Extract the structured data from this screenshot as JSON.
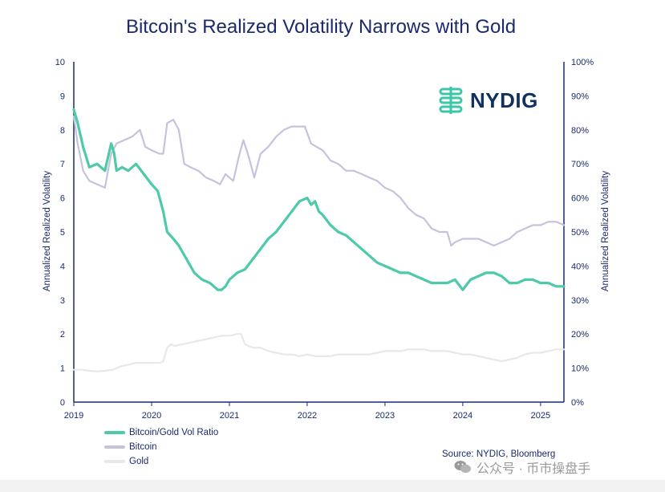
{
  "chart_data": {
    "type": "line",
    "title": "Bitcoin's Realized Volatility Narrows with Gold",
    "xlabel": "",
    "ylabel_left": "Annualized Realized Volatility",
    "ylabel_right": "Annualized Realized Volatility",
    "xlim": [
      2019,
      2025.3
    ],
    "ylim_left": [
      0,
      10
    ],
    "ylim_right": [
      0,
      100
    ],
    "x_ticks": [
      "2019",
      "2020",
      "2021",
      "2022",
      "2023",
      "2024",
      "2025"
    ],
    "y_ticks_left": [
      "0",
      "1",
      "2",
      "3",
      "4",
      "5",
      "6",
      "7",
      "8",
      "9",
      "10"
    ],
    "y_ticks_right": [
      "0%",
      "10%",
      "20%",
      "30%",
      "40%",
      "50%",
      "60%",
      "70%",
      "80%",
      "90%",
      "100%"
    ],
    "grid": false,
    "legend_position": "bottom-left",
    "series": [
      {
        "name": "Bitcoin/Gold Vol Ratio",
        "axis": "left",
        "color": "#4ec9aa",
        "x": [
          2019.0,
          2019.05,
          2019.12,
          2019.2,
          2019.3,
          2019.4,
          2019.48,
          2019.52,
          2019.55,
          2019.62,
          2019.7,
          2019.8,
          2019.9,
          2020.0,
          2020.08,
          2020.15,
          2020.2,
          2020.28,
          2020.35,
          2020.45,
          2020.55,
          2020.65,
          2020.75,
          2020.85,
          2020.9,
          2020.95,
          2021.0,
          2021.1,
          2021.2,
          2021.3,
          2021.4,
          2021.5,
          2021.6,
          2021.7,
          2021.8,
          2021.9,
          2022.0,
          2022.05,
          2022.1,
          2022.15,
          2022.2,
          2022.3,
          2022.4,
          2022.5,
          2022.6,
          2022.7,
          2022.8,
          2022.9,
          2023.0,
          2023.1,
          2023.2,
          2023.3,
          2023.4,
          2023.5,
          2023.6,
          2023.7,
          2023.8,
          2023.9,
          2024.0,
          2024.1,
          2024.2,
          2024.3,
          2024.4,
          2024.5,
          2024.6,
          2024.7,
          2024.8,
          2024.9,
          2025.0,
          2025.1,
          2025.2,
          2025.3
        ],
        "values": [
          8.6,
          8.2,
          7.5,
          6.9,
          7.0,
          6.8,
          7.6,
          7.3,
          6.8,
          6.9,
          6.8,
          7.0,
          6.7,
          6.4,
          6.2,
          5.6,
          5.0,
          4.8,
          4.6,
          4.2,
          3.8,
          3.6,
          3.5,
          3.3,
          3.3,
          3.4,
          3.6,
          3.8,
          3.9,
          4.2,
          4.5,
          4.8,
          5.0,
          5.3,
          5.6,
          5.9,
          6.0,
          5.8,
          5.9,
          5.6,
          5.5,
          5.2,
          5.0,
          4.9,
          4.7,
          4.5,
          4.3,
          4.1,
          4.0,
          3.9,
          3.8,
          3.8,
          3.7,
          3.6,
          3.5,
          3.5,
          3.5,
          3.6,
          3.3,
          3.6,
          3.7,
          3.8,
          3.8,
          3.7,
          3.5,
          3.5,
          3.6,
          3.6,
          3.5,
          3.5,
          3.4,
          3.4
        ]
      },
      {
        "name": "Bitcoin",
        "axis": "right",
        "color": "#c3c4dc",
        "x": [
          2019.0,
          2019.05,
          2019.12,
          2019.2,
          2019.3,
          2019.4,
          2019.48,
          2019.55,
          2019.65,
          2019.75,
          2019.85,
          2019.92,
          2020.0,
          2020.1,
          2020.15,
          2020.2,
          2020.28,
          2020.35,
          2020.42,
          2020.5,
          2020.6,
          2020.7,
          2020.8,
          2020.88,
          2020.95,
          2021.05,
          2021.12,
          2021.18,
          2021.25,
          2021.32,
          2021.4,
          2021.5,
          2021.6,
          2021.7,
          2021.8,
          2021.9,
          2021.97,
          2022.05,
          2022.12,
          2022.2,
          2022.3,
          2022.4,
          2022.5,
          2022.6,
          2022.7,
          2022.8,
          2022.9,
          2023.0,
          2023.1,
          2023.2,
          2023.3,
          2023.4,
          2023.5,
          2023.6,
          2023.7,
          2023.8,
          2023.85,
          2023.9,
          2024.0,
          2024.1,
          2024.2,
          2024.3,
          2024.4,
          2024.5,
          2024.6,
          2024.7,
          2024.8,
          2024.9,
          2025.0,
          2025.1,
          2025.2,
          2025.3
        ],
        "values": [
          84,
          76,
          68,
          65,
          64,
          63,
          73,
          76,
          77,
          78,
          80,
          75,
          74,
          73,
          73,
          82,
          83,
          80,
          70,
          69,
          68,
          66,
          65,
          64,
          67,
          65,
          72,
          77,
          72,
          66,
          73,
          75,
          78,
          80,
          81,
          81,
          81,
          76,
          75,
          74,
          71,
          70,
          68,
          68,
          67,
          66,
          65,
          63,
          62,
          60,
          57,
          55,
          54,
          51,
          50,
          50,
          46,
          47,
          48,
          48,
          48,
          47,
          46,
          47,
          48,
          50,
          51,
          52,
          52,
          53,
          53,
          52
        ]
      },
      {
        "name": "Gold",
        "axis": "right",
        "color": "#e8e8e8",
        "x": [
          2019.0,
          2019.1,
          2019.2,
          2019.3,
          2019.4,
          2019.5,
          2019.6,
          2019.7,
          2019.8,
          2019.9,
          2020.0,
          2020.1,
          2020.15,
          2020.2,
          2020.25,
          2020.3,
          2020.4,
          2020.5,
          2020.6,
          2020.7,
          2020.8,
          2020.9,
          2021.0,
          2021.1,
          2021.15,
          2021.2,
          2021.3,
          2021.4,
          2021.5,
          2021.6,
          2021.7,
          2021.8,
          2021.9,
          2022.0,
          2022.1,
          2022.2,
          2022.3,
          2022.4,
          2022.5,
          2022.6,
          2022.7,
          2022.8,
          2022.9,
          2023.0,
          2023.1,
          2023.2,
          2023.3,
          2023.4,
          2023.5,
          2023.6,
          2023.7,
          2023.8,
          2023.9,
          2024.0,
          2024.1,
          2024.2,
          2024.3,
          2024.4,
          2024.5,
          2024.6,
          2024.7,
          2024.8,
          2024.9,
          2025.0,
          2025.1,
          2025.2,
          2025.3
        ],
        "values": [
          9.5,
          9.5,
          9.2,
          9.0,
          9.2,
          9.5,
          10.5,
          11.0,
          11.5,
          11.5,
          11.5,
          11.5,
          12,
          16,
          17,
          16.5,
          17,
          17.5,
          18,
          18.5,
          19,
          19.5,
          19.5,
          20,
          20,
          17,
          16,
          16,
          15,
          14.5,
          14,
          14,
          13.5,
          14,
          13.5,
          13.5,
          13.5,
          14,
          14,
          14,
          14,
          14,
          14.5,
          15,
          15,
          15,
          15.5,
          15.5,
          15.5,
          15,
          15,
          15,
          14.5,
          14,
          14,
          13.5,
          13,
          12.5,
          12,
          12.5,
          13,
          14,
          14.5,
          14.5,
          15,
          15.5,
          15.5
        ]
      }
    ],
    "source": "Source: NYDIG, Bloomberg"
  },
  "logo": {
    "text": "NYDIG",
    "icon": "nydig-logo-icon",
    "color": "#3cc6a8"
  },
  "watermark": {
    "text": "公众号 · 币市操盘手",
    "icon": "wechat-icon"
  },
  "colors": {
    "axis": "#1a2a6c",
    "title": "#1a2a6c"
  }
}
